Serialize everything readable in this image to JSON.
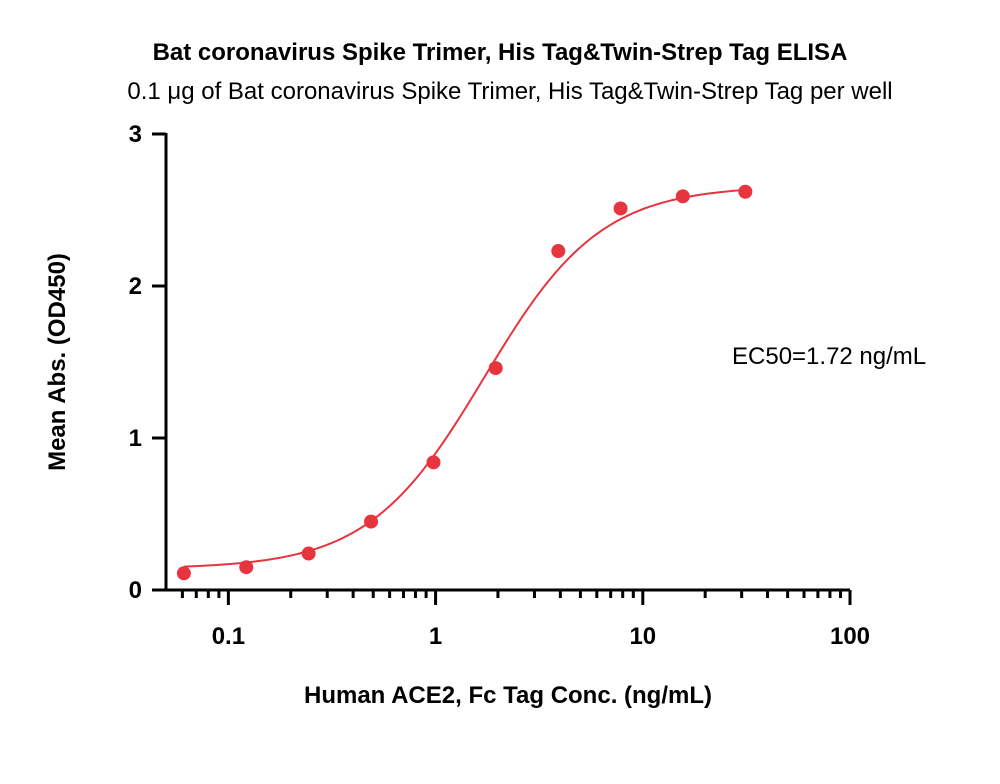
{
  "chart_data": {
    "type": "scatter",
    "title": "Bat coronavirus Spike Trimer, His Tag&Twin-Strep Tag ELISA",
    "subtitle": "0.1 μg of Bat coronavirus Spike Trimer, His Tag&Twin-Strep Tag per well",
    "xlabel": "Human ACE2, Fc Tag Conc. (ng/mL)",
    "ylabel": "Mean Abs. (OD450)",
    "x_scale": "log",
    "xlim": [
      0.05,
      100
    ],
    "ylim": [
      0,
      3
    ],
    "x_ticks": [
      {
        "value": 0.1,
        "label": "0.1"
      },
      {
        "value": 1,
        "label": "1"
      },
      {
        "value": 10,
        "label": "10"
      },
      {
        "value": 100,
        "label": "100"
      }
    ],
    "y_ticks": [
      {
        "value": 0,
        "label": "0"
      },
      {
        "value": 1,
        "label": "1"
      },
      {
        "value": 2,
        "label": "2"
      },
      {
        "value": 3,
        "label": "3"
      }
    ],
    "grid": false,
    "series": [
      {
        "color": "#e8343f",
        "points": [
          {
            "x": 0.061,
            "y": 0.11
          },
          {
            "x": 0.122,
            "y": 0.15
          },
          {
            "x": 0.244,
            "y": 0.24
          },
          {
            "x": 0.488,
            "y": 0.45
          },
          {
            "x": 0.977,
            "y": 0.84
          },
          {
            "x": 1.95,
            "y": 1.46
          },
          {
            "x": 3.91,
            "y": 2.23
          },
          {
            "x": 7.81,
            "y": 2.51
          },
          {
            "x": 15.6,
            "y": 2.59
          },
          {
            "x": 31.25,
            "y": 2.62
          }
        ],
        "fit": {
          "bottom": 0.14,
          "top": 2.66,
          "ec50": 1.72,
          "hill": 1.55
        }
      }
    ],
    "annotations": [
      {
        "text": "EC50=1.72 ng/mL"
      }
    ]
  }
}
